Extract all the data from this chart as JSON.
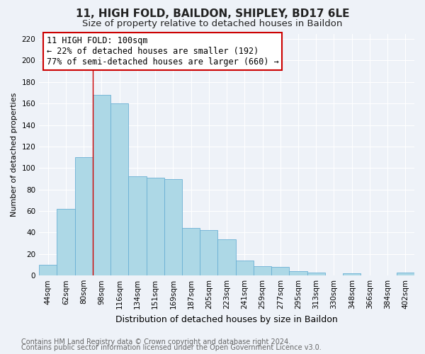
{
  "title": "11, HIGH FOLD, BAILDON, SHIPLEY, BD17 6LE",
  "subtitle": "Size of property relative to detached houses in Baildon",
  "xlabel": "Distribution of detached houses by size in Baildon",
  "ylabel": "Number of detached properties",
  "categories": [
    "44sqm",
    "62sqm",
    "80sqm",
    "98sqm",
    "116sqm",
    "134sqm",
    "151sqm",
    "169sqm",
    "187sqm",
    "205sqm",
    "223sqm",
    "241sqm",
    "259sqm",
    "277sqm",
    "295sqm",
    "313sqm",
    "330sqm",
    "348sqm",
    "366sqm",
    "384sqm",
    "402sqm"
  ],
  "values": [
    10,
    62,
    110,
    168,
    160,
    92,
    91,
    90,
    44,
    42,
    34,
    14,
    9,
    8,
    4,
    3,
    0,
    2,
    0,
    0,
    3
  ],
  "bar_color": "#add8e6",
  "bar_edge_color": "#6ab0d4",
  "ylim": [
    0,
    225
  ],
  "yticks": [
    0,
    20,
    40,
    60,
    80,
    100,
    120,
    140,
    160,
    180,
    200,
    220
  ],
  "annotation_line1": "11 HIGH FOLD: 100sqm",
  "annotation_line2": "← 22% of detached houses are smaller (192)",
  "annotation_line3": "77% of semi-detached houses are larger (660) →",
  "box_facecolor": "#ffffff",
  "box_edgecolor": "#cc0000",
  "highlight_bar_index": 3,
  "highlight_line_color": "#cc0000",
  "footnote1": "Contains HM Land Registry data © Crown copyright and database right 2024.",
  "footnote2": "Contains public sector information licensed under the Open Government Licence v3.0.",
  "background_color": "#eef2f8",
  "grid_color": "#ffffff",
  "title_fontsize": 11,
  "subtitle_fontsize": 9.5,
  "xlabel_fontsize": 9,
  "ylabel_fontsize": 8,
  "tick_fontsize": 7.5,
  "annotation_fontsize": 8.5,
  "footnote_fontsize": 7
}
